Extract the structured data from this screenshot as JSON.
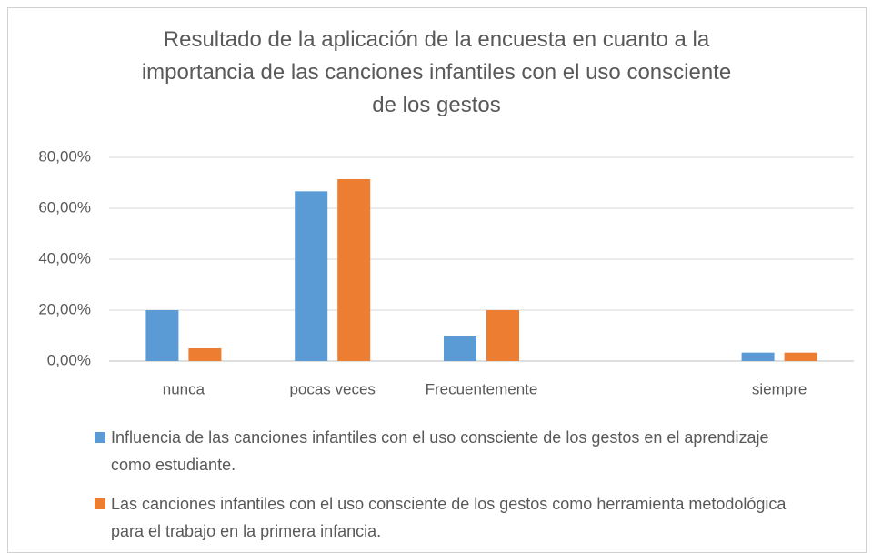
{
  "chart_data": {
    "type": "bar",
    "title": "Resultado de la aplicación de la encuesta en cuanto a la importancia de las canciones infantiles con el uso consciente de los gestos",
    "categories": [
      "nunca",
      "pocas veces",
      "Frecuentemente",
      null,
      "siempre"
    ],
    "series": [
      {
        "name": "Influencia de las canciones infantiles con el uso consciente de los gestos en el aprendizaje como estudiante.",
        "color": "#5b9bd5",
        "values": [
          20,
          66.67,
          10,
          null,
          3.33
        ]
      },
      {
        "name": "Las canciones infantiles con el uso consciente de los gestos como herramienta metodológica para el trabajo en la primera infancia.",
        "color": "#ed7d31",
        "values": [
          5,
          71.43,
          20,
          null,
          3.33
        ]
      }
    ],
    "ylim": [
      0,
      80
    ],
    "yticks": [
      {
        "value": 0,
        "label": "0,00%"
      },
      {
        "value": 20,
        "label": "20,00%"
      },
      {
        "value": 40,
        "label": "40,00%"
      },
      {
        "value": 60,
        "label": "60,00%"
      },
      {
        "value": 80,
        "label": "80,00%"
      }
    ],
    "grid": true,
    "legend": "bottom"
  }
}
